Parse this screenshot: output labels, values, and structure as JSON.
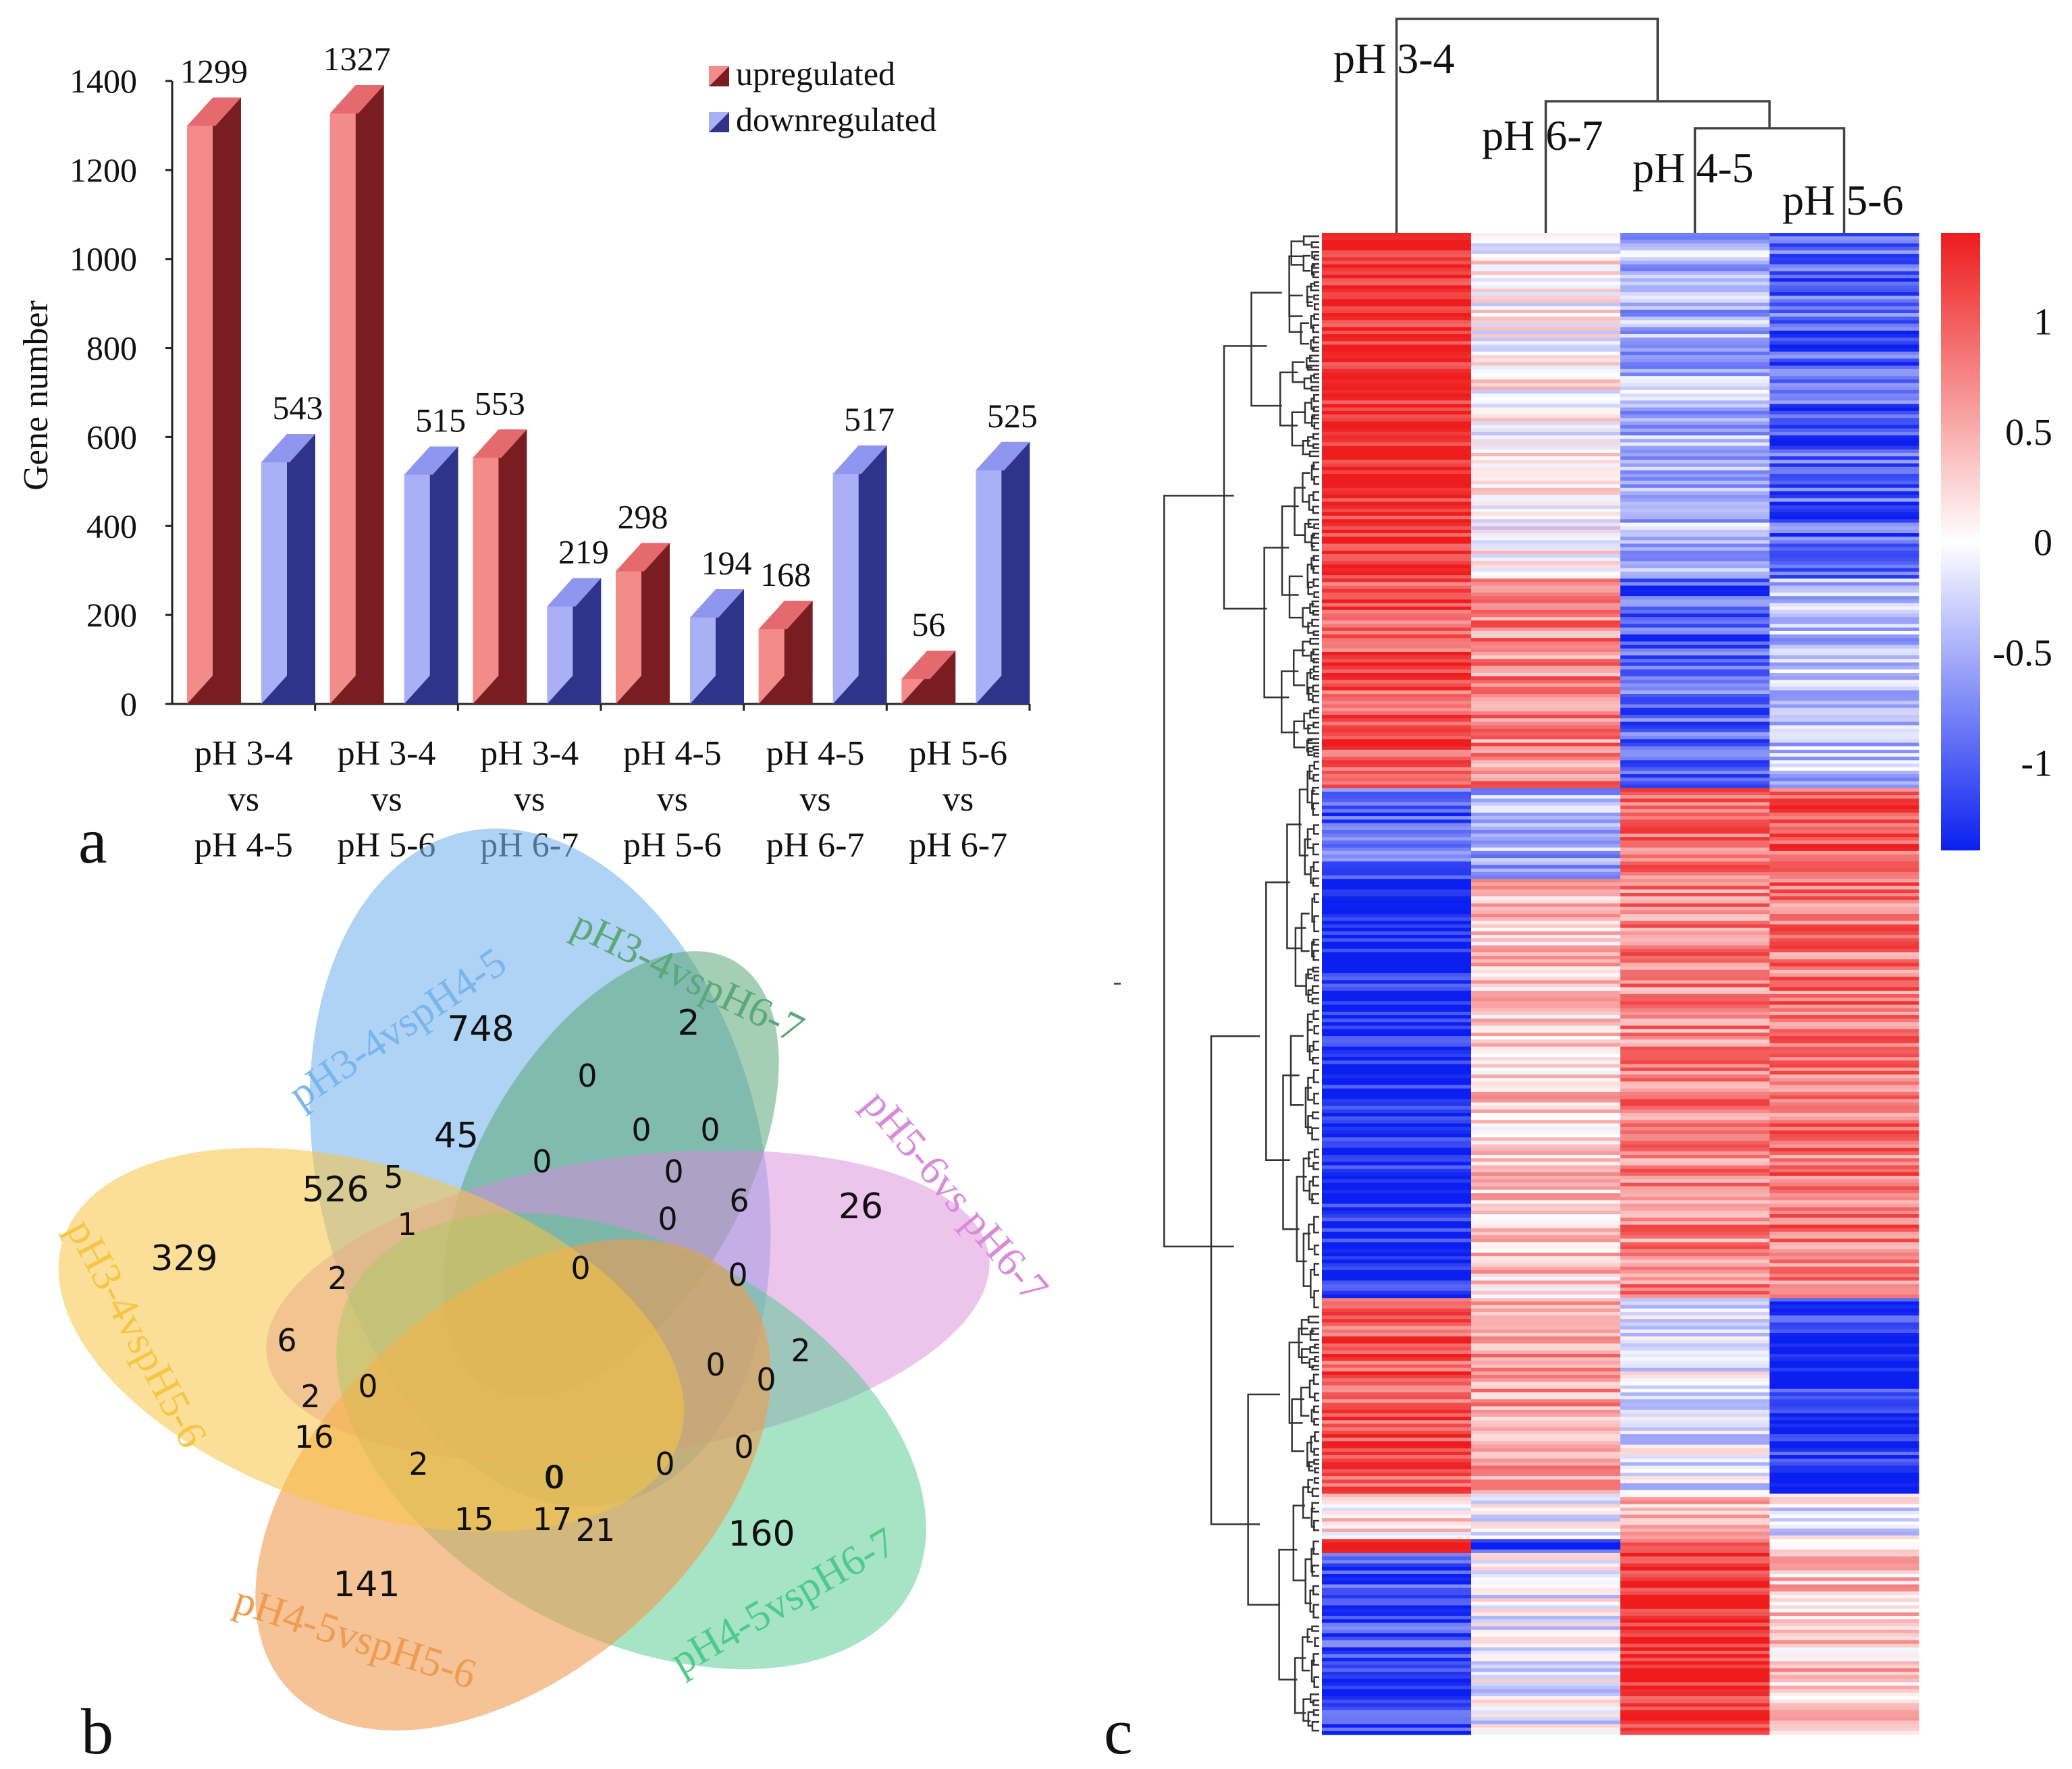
{
  "panel_labels": {
    "a": "a",
    "b": "b",
    "c": "c"
  },
  "chart_data": [
    {
      "type": "bar",
      "panel": "a",
      "title": "",
      "xlabel": "",
      "ylabel": "Gene number",
      "ylim": [
        0,
        1400
      ],
      "yticks": [
        0,
        200,
        400,
        600,
        800,
        1000,
        1200,
        1400
      ],
      "grid": false,
      "legend_position": "top-right",
      "categories": [
        [
          "pH 3-4",
          "vs",
          "pH 4-5"
        ],
        [
          "pH 3-4",
          "vs",
          "pH 5-6"
        ],
        [
          "pH 3-4",
          "vs",
          "pH 6-7"
        ],
        [
          "pH 4-5",
          "vs",
          "pH 5-6"
        ],
        [
          "pH 4-5",
          "vs",
          "pH 6-7"
        ],
        [
          "pH 5-6",
          "vs",
          "pH 6-7"
        ]
      ],
      "series": [
        {
          "name": "upregulated",
          "values": [
            1299,
            1327,
            553,
            298,
            168,
            56
          ],
          "face": "#f48b8b",
          "side": "#7a1d22",
          "top": "#e56a6e"
        },
        {
          "name": "downregulated",
          "values": [
            543,
            515,
            219,
            194,
            517,
            525
          ],
          "face": "#aab0f6",
          "side": "#2e3489",
          "top": "#8f96ee"
        }
      ]
    },
    {
      "type": "venn",
      "panel": "b",
      "sets": [
        {
          "name": "pH3-4vspH4-5",
          "color": "#79b6ec"
        },
        {
          "name": "pH3-4vspH6-7",
          "color": "#5ba878"
        },
        {
          "name": "pH5-6vs pH6-7",
          "color": "#d98ad9"
        },
        {
          "name": "pH4-5vspH6-7",
          "color": "#4fc98c"
        },
        {
          "name": "pH4-5vspH5-6",
          "color": "#ef9b50"
        },
        {
          "name": "pH3-4vspH5-6",
          "color": "#f7c544"
        }
      ],
      "region_counts": [
        "748",
        "2",
        "26",
        "160",
        "141",
        "329",
        "526",
        "45",
        "5",
        "1",
        "0",
        "0",
        "0",
        "0",
        "0",
        "6",
        "0",
        "0",
        "0",
        "2",
        "0",
        "0",
        "0",
        "0",
        "0",
        "2",
        "6",
        "2",
        "0",
        "16",
        "2",
        "0",
        "15",
        "17",
        "21"
      ]
    },
    {
      "type": "heatmap",
      "panel": "c",
      "columns": [
        "pH 3-4",
        "pH 6-7",
        "pH 4-5",
        "pH 5-6"
      ],
      "colorbar": {
        "ticks": [
          "1",
          "0.5",
          "0",
          "-0.5",
          "-1"
        ],
        "range": [
          -1.4,
          1.4
        ],
        "colors": {
          "high": "#ee1c1c",
          "mid": "#ffffff",
          "low": "#0b20f0"
        }
      },
      "clusters": [
        {
          "fraction": 0.23,
          "means": [
            1.35,
            0.05,
            -0.45,
            -1.0
          ]
        },
        {
          "fraction": 0.14,
          "means": [
            1.05,
            0.75,
            -0.95,
            -0.35
          ]
        },
        {
          "fraction": 0.06,
          "means": [
            -1.0,
            -0.5,
            0.95,
            1.05
          ]
        },
        {
          "fraction": 0.28,
          "means": [
            -1.4,
            0.35,
            0.75,
            0.85
          ]
        },
        {
          "fraction": 0.13,
          "means": [
            1.0,
            0.6,
            -0.15,
            -1.3
          ]
        },
        {
          "fraction": 0.03,
          "means": [
            0.2,
            0.0,
            0.4,
            -0.1
          ]
        },
        {
          "fraction": 0.01,
          "means": [
            1.2,
            -1.2,
            1.2,
            0.1
          ]
        },
        {
          "fraction": 0.12,
          "means": [
            -1.1,
            -0.1,
            1.3,
            0.35
          ]
        }
      ]
    }
  ]
}
